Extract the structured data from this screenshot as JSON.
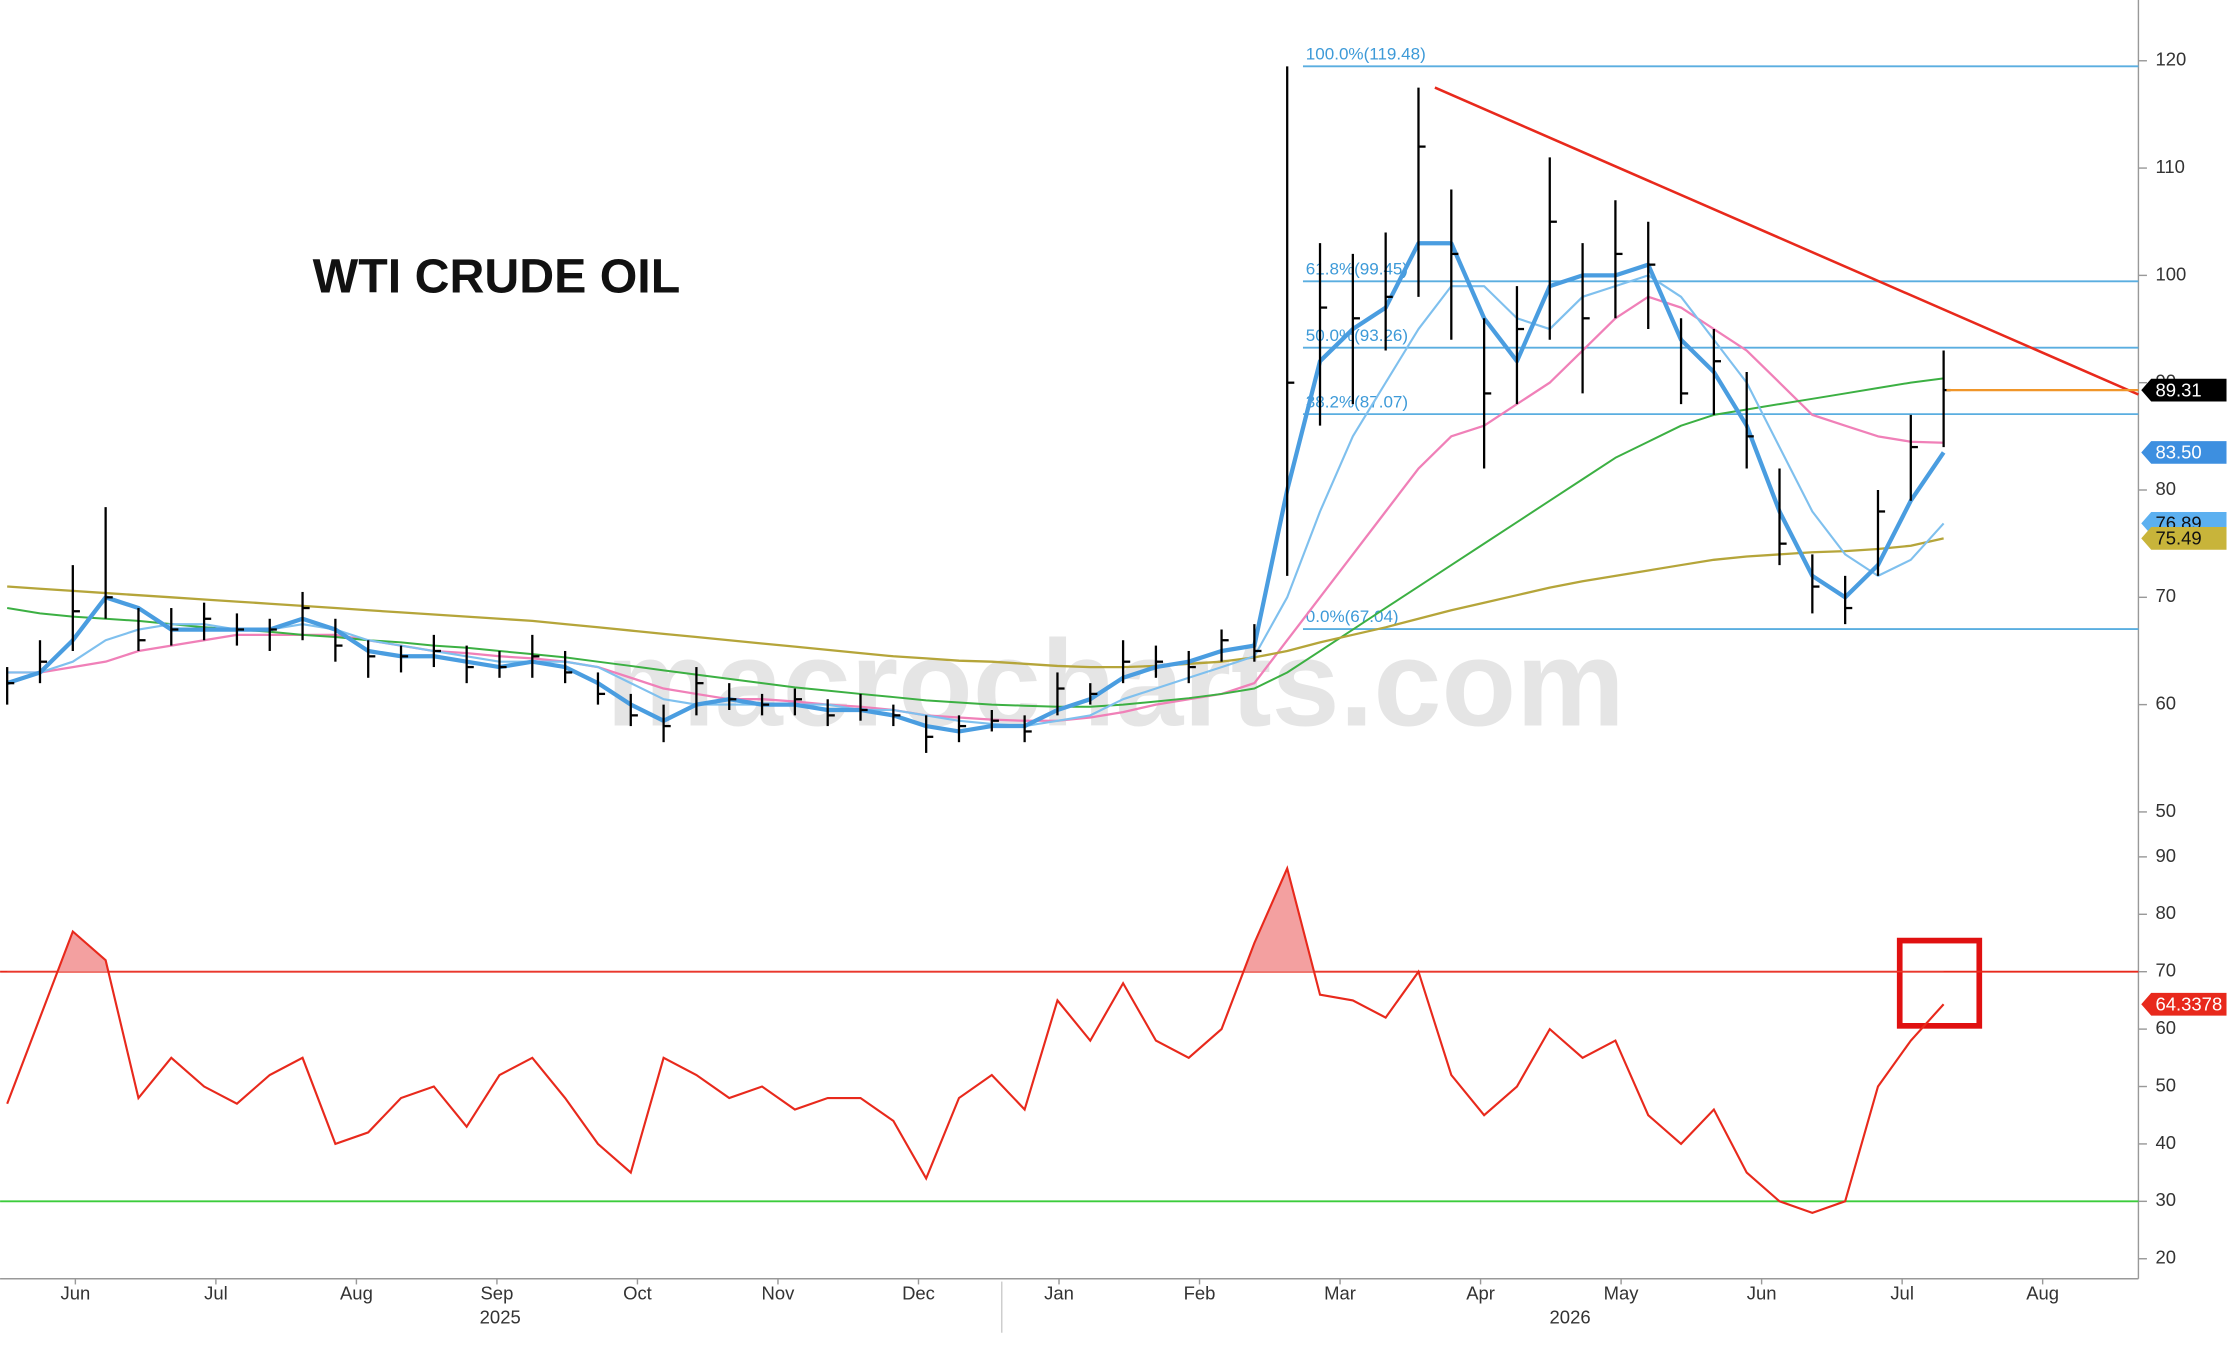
{
  "chart_data": [
    {
      "type": "ohlc",
      "title": "WTI CRUDE OIL",
      "watermark": "macrocharts.com",
      "color": "#000000",
      "high": [
        63.5,
        66,
        73,
        78.4,
        69,
        69,
        69.5,
        68.5,
        68,
        70.5,
        68,
        66,
        65.5,
        66.5,
        65.5,
        65,
        66.5,
        65,
        63,
        61,
        60,
        63.5,
        62,
        61,
        61.5,
        60.5,
        61,
        60,
        59,
        59,
        59.5,
        59,
        63,
        62,
        66,
        65.5,
        65,
        67,
        67.5,
        119.48,
        103,
        102,
        104,
        117.5,
        108,
        96,
        99,
        111,
        103,
        107,
        105,
        96,
        95,
        91,
        82,
        74,
        72,
        80,
        87,
        93
      ],
      "low": [
        60,
        62,
        65,
        68,
        65,
        65.5,
        66,
        65.5,
        65,
        66,
        64,
        62.5,
        63,
        63.5,
        62,
        62.5,
        62.5,
        62,
        60,
        58,
        56.5,
        59,
        59.5,
        59,
        59,
        58,
        58.5,
        58,
        55.5,
        56.5,
        57.5,
        56.5,
        59,
        60,
        62,
        62.5,
        62,
        64,
        64,
        72,
        86,
        88,
        93,
        98,
        94,
        82,
        88,
        94,
        89,
        96,
        95,
        88,
        87,
        82,
        73,
        68.5,
        67.5,
        72,
        79,
        84
      ],
      "close": [
        62,
        64,
        68.7,
        70,
        66,
        67,
        68,
        67,
        67,
        69,
        65.5,
        64.5,
        64.5,
        65,
        63.5,
        63.5,
        64.5,
        63,
        61,
        59,
        58,
        62,
        60.5,
        60,
        60.5,
        59,
        59.5,
        59,
        57,
        58,
        58.5,
        57.5,
        61.5,
        61,
        64,
        64,
        63.5,
        66,
        65,
        90,
        97,
        96,
        98,
        112,
        102,
        89,
        95,
        105,
        96,
        102,
        101,
        89,
        92,
        85,
        75,
        71,
        69,
        78,
        84,
        89.31
      ],
      "series": [
        {
          "color": "#f080b8",
          "width": 1.6,
          "values": [
            63,
            63,
            63.5,
            64,
            65,
            65.5,
            66,
            66.5,
            66.5,
            66.5,
            66.5,
            66,
            65.5,
            65,
            64.8,
            64.5,
            64.3,
            64,
            63.5,
            62.5,
            61.5,
            61,
            60.5,
            60.5,
            60.3,
            60,
            59.8,
            59.5,
            59,
            58.8,
            58.6,
            58.5,
            58.5,
            58.8,
            59.3,
            60,
            60.5,
            61,
            62,
            66,
            70,
            74,
            78,
            82,
            85,
            86,
            88,
            90,
            93,
            96,
            98,
            97,
            95,
            93,
            90,
            87,
            86,
            85,
            84.5,
            84.4
          ]
        },
        {
          "color": "#3cb043",
          "width": 1.4,
          "values": [
            69,
            68.5,
            68.2,
            68,
            67.8,
            67.5,
            67.2,
            67,
            66.8,
            66.5,
            66.3,
            66,
            65.8,
            65.5,
            65.3,
            65,
            64.7,
            64.4,
            64,
            63.6,
            63.2,
            62.8,
            62.4,
            62,
            61.6,
            61.3,
            61,
            60.7,
            60.4,
            60.2,
            60,
            59.9,
            59.8,
            59.8,
            60,
            60.3,
            60.6,
            61,
            61.5,
            63,
            65,
            67,
            69,
            71,
            73,
            75,
            77,
            79,
            81,
            83,
            84.5,
            86,
            87,
            87.5,
            88,
            88.5,
            89,
            89.5,
            90,
            90.4
          ]
        },
        {
          "color": "#b5a53a",
          "width": 1.6,
          "values": [
            71,
            70.8,
            70.6,
            70.4,
            70.2,
            70,
            69.8,
            69.6,
            69.4,
            69.2,
            69,
            68.8,
            68.6,
            68.4,
            68.2,
            68,
            67.8,
            67.5,
            67.2,
            66.9,
            66.6,
            66.3,
            66,
            65.7,
            65.4,
            65.1,
            64.8,
            64.5,
            64.3,
            64.1,
            64,
            63.8,
            63.6,
            63.5,
            63.5,
            63.6,
            63.8,
            64,
            64.4,
            65,
            65.8,
            66.5,
            67.2,
            68,
            68.8,
            69.5,
            70.2,
            70.9,
            71.5,
            72,
            72.5,
            73,
            73.5,
            73.8,
            74,
            74.2,
            74.3,
            74.5,
            74.8,
            75.49
          ]
        },
        {
          "color": "#7fc0ee",
          "width": 1.5,
          "values": [
            63,
            63,
            64,
            66,
            67,
            67.5,
            67.5,
            67,
            67,
            67.5,
            67,
            66,
            65.5,
            65,
            64.5,
            64,
            64,
            64,
            63.5,
            62,
            60.5,
            60,
            60,
            60,
            60,
            60,
            59.5,
            59.5,
            59,
            58.5,
            58.2,
            58,
            58.5,
            59,
            60.5,
            61.5,
            62.5,
            63.5,
            64.5,
            70,
            78,
            85,
            90,
            95,
            99,
            99,
            96,
            95,
            98,
            99,
            100,
            98,
            94,
            90,
            84,
            78,
            74,
            72,
            73.5,
            76.89
          ]
        },
        {
          "color": "#4a9de0",
          "width": 3,
          "values": [
            62,
            63,
            66,
            70,
            69,
            67,
            67,
            67,
            67,
            68,
            67,
            65,
            64.5,
            64.5,
            64,
            63.5,
            64,
            63.5,
            62,
            60,
            58.5,
            60,
            60.5,
            60,
            60,
            59.5,
            59.5,
            59,
            58,
            57.5,
            58,
            58,
            59.5,
            60.5,
            62.5,
            63.5,
            64,
            65,
            65.5,
            80,
            92,
            95,
            97,
            103,
            103,
            96,
            92,
            99,
            100,
            100,
            101,
            94,
            91,
            86,
            78,
            72,
            70,
            73,
            79,
            83.5
          ]
        }
      ],
      "fib_levels": [
        {
          "value": 119.48,
          "label": "100.0%(119.48)"
        },
        {
          "value": 99.45,
          "label": "61.8%(99.45)"
        },
        {
          "value": 93.26,
          "label": "50.0%(93.26)"
        },
        {
          "value": 87.07,
          "label": "38.2%(87.07)"
        },
        {
          "value": 67.04,
          "label": "0.0%(67.04)"
        }
      ],
      "fib_color": "#5aaee0",
      "trendline": {
        "color": "#e8291c",
        "values": [
          117.5,
          88.9
        ]
      },
      "last_color": "#f0962a",
      "tags": [
        {
          "value": 89.31,
          "color": "#000000",
          "text_color": "#ffffff"
        },
        {
          "value": 83.5,
          "label": "83.50",
          "color": "#3d8fe0",
          "text_color": "#ffffff"
        },
        {
          "value": 76.89,
          "color": "#5cb0f0",
          "text_color": "#111111"
        },
        {
          "value": 75.49,
          "color": "#c8b43a",
          "text_color": "#111111"
        }
      ],
      "ylim": [
        49,
        125
      ],
      "yticks": [
        50,
        60,
        70,
        80,
        90,
        100,
        110,
        120
      ]
    },
    {
      "type": "line",
      "color": "#e8291c",
      "values": [
        47,
        62,
        77,
        72,
        48,
        55,
        50,
        47,
        52,
        55,
        40,
        42,
        48,
        50,
        43,
        52,
        55,
        48,
        40,
        35,
        55,
        52,
        48,
        50,
        46,
        48,
        48,
        44,
        34,
        48,
        52,
        46,
        65,
        58,
        68,
        58,
        55,
        60,
        75,
        88,
        66,
        65,
        62,
        70,
        52,
        45,
        50,
        60,
        55,
        58,
        45,
        40,
        46,
        35,
        30,
        28,
        30,
        50,
        58,
        64.3378
      ],
      "thresholds": [
        {
          "value": 70,
          "color": "#e8291c"
        },
        {
          "value": 30,
          "color": "#3ccc3c"
        }
      ],
      "overbought_fill": "#f3a0a0",
      "tag": {
        "value": 64.3378,
        "color": "#e8291c",
        "text_color": "#ffffff"
      },
      "ylim": [
        18,
        92
      ],
      "yticks": [
        20,
        30,
        40,
        50,
        60,
        70,
        80,
        90
      ],
      "x_labels": [
        "Jun",
        "Jul",
        "Aug",
        "Sep",
        "Oct",
        "Nov",
        "Dec",
        "Jan",
        "Feb",
        "Mar",
        "Apr",
        "May",
        "Jun",
        "Jul",
        "Aug"
      ],
      "years": [
        "2025",
        "2026"
      ]
    }
  ]
}
